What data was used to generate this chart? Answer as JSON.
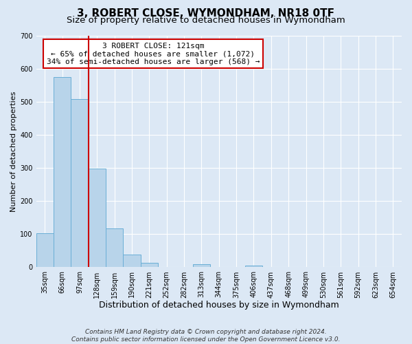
{
  "title": "3, ROBERT CLOSE, WYMONDHAM, NR18 0TF",
  "subtitle": "Size of property relative to detached houses in Wymondham",
  "xlabel": "Distribution of detached houses by size in Wymondham",
  "ylabel": "Number of detached properties",
  "bar_labels": [
    "35sqm",
    "66sqm",
    "97sqm",
    "128sqm",
    "159sqm",
    "190sqm",
    "221sqm",
    "252sqm",
    "282sqm",
    "313sqm",
    "344sqm",
    "375sqm",
    "406sqm",
    "437sqm",
    "468sqm",
    "499sqm",
    "530sqm",
    "561sqm",
    "592sqm",
    "623sqm",
    "654sqm"
  ],
  "bar_values": [
    103,
    575,
    508,
    299,
    118,
    38,
    14,
    2,
    0,
    9,
    0,
    0,
    5,
    0,
    0,
    0,
    0,
    0,
    0,
    0,
    0
  ],
  "bar_color": "#b8d4ea",
  "bar_edge_color": "#6aaed6",
  "ylim": [
    0,
    700
  ],
  "yticks": [
    0,
    100,
    200,
    300,
    400,
    500,
    600,
    700
  ],
  "property_line_color": "#cc0000",
  "annotation_title": "3 ROBERT CLOSE: 121sqm",
  "annotation_line1": "← 65% of detached houses are smaller (1,072)",
  "annotation_line2": "34% of semi-detached houses are larger (568) →",
  "annotation_box_color": "#ffffff",
  "annotation_box_edge": "#cc0000",
  "footer1": "Contains HM Land Registry data © Crown copyright and database right 2024.",
  "footer2": "Contains public sector information licensed under the Open Government Licence v3.0.",
  "background_color": "#dce8f5",
  "plot_bg_color": "#dce8f5",
  "grid_color": "#ffffff",
  "title_fontsize": 11,
  "subtitle_fontsize": 9.5,
  "xlabel_fontsize": 9,
  "ylabel_fontsize": 8,
  "tick_fontsize": 7,
  "footer_fontsize": 6.5
}
